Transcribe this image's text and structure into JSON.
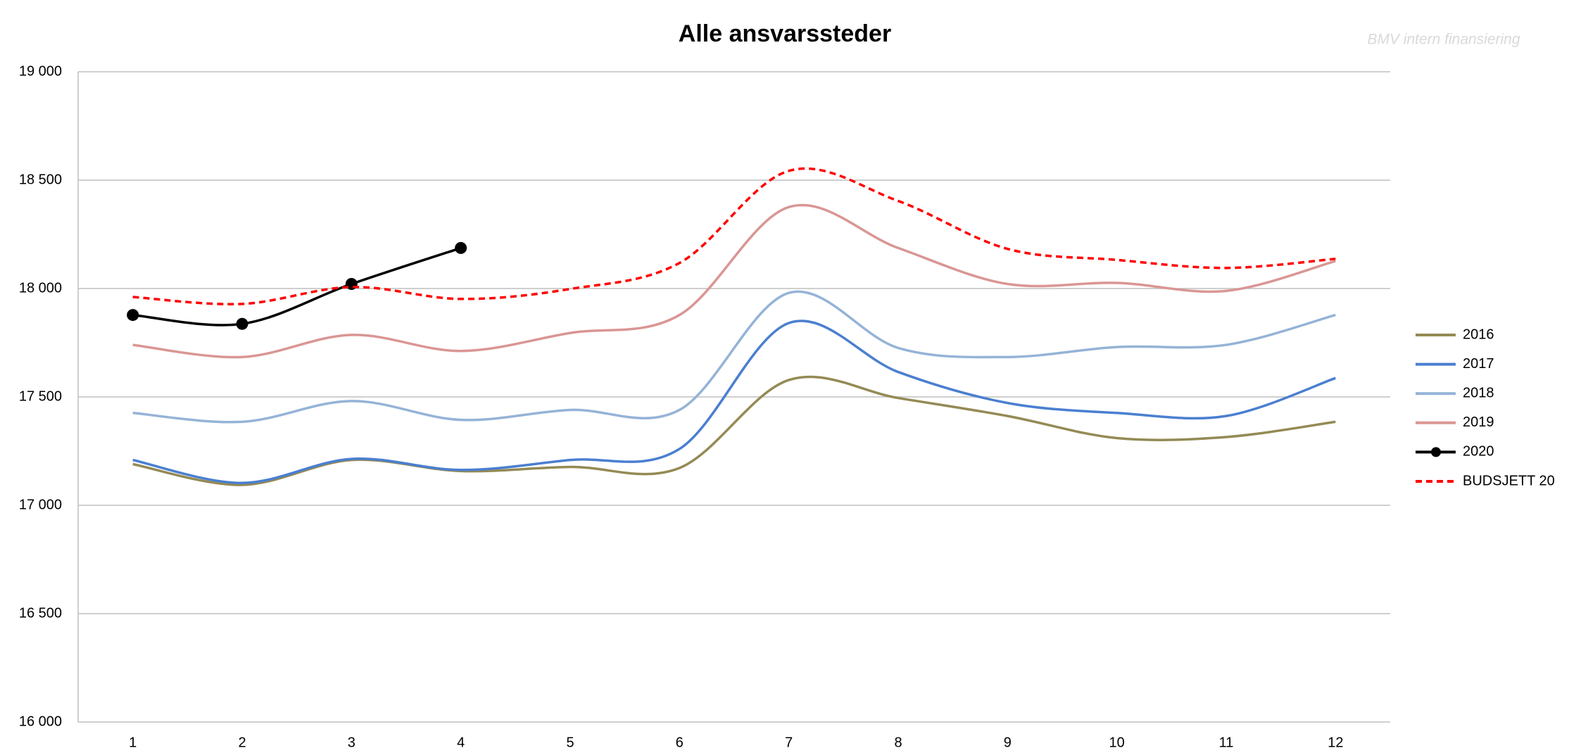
{
  "chart_data": {
    "type": "line",
    "title": "Alle ansvarssteder",
    "watermark": "BMV intern finansiering",
    "categories": [
      "1",
      "2",
      "3",
      "4",
      "5",
      "6",
      "7",
      "8",
      "9",
      "10",
      "11",
      "12"
    ],
    "smooth": true,
    "grid": true,
    "legend": "right",
    "ylim": [
      16000,
      19000
    ],
    "yticks": [
      {
        "value": 16000,
        "label": "16 000"
      },
      {
        "value": 16500,
        "label": "16 500"
      },
      {
        "value": 17000,
        "label": "17 000"
      },
      {
        "value": 17500,
        "label": "17 500"
      },
      {
        "value": 18000,
        "label": "18 000"
      },
      {
        "value": 18500,
        "label": "18 500"
      },
      {
        "value": 19000,
        "label": "19 000"
      }
    ],
    "series": [
      {
        "name": "2016",
        "color": "#948a54",
        "values": [
          17190,
          17094,
          17209,
          17158,
          17177,
          17172,
          17578,
          17495,
          17412,
          17310,
          17315,
          17385
        ]
      },
      {
        "name": "2017",
        "color": "#4a7fd0",
        "values": [
          17209,
          17103,
          17214,
          17163,
          17209,
          17260,
          17841,
          17615,
          17472,
          17426,
          17412,
          17587
        ]
      },
      {
        "name": "2018",
        "color": "#95b3d7",
        "values": [
          17426,
          17385,
          17481,
          17394,
          17440,
          17440,
          17980,
          17726,
          17684,
          17730,
          17740,
          17878
        ]
      },
      {
        "name": "2019",
        "color": "#d99694",
        "values": [
          17740,
          17684,
          17786,
          17712,
          17795,
          17878,
          18376,
          18187,
          18021,
          18026,
          17989,
          18127
        ]
      },
      {
        "name": "2020",
        "color": "#000000",
        "marker": "circle",
        "values": [
          17878,
          17837,
          18021,
          18187,
          null,
          null,
          null,
          null,
          null,
          null,
          null,
          null
        ]
      },
      {
        "name": "BUDSJETT 20",
        "color": "#ff0000",
        "dash": "dashed",
        "values": [
          17961,
          17929,
          18007,
          17952,
          17998,
          18118,
          18543,
          18404,
          18183,
          18132,
          18095,
          18137
        ]
      }
    ]
  }
}
